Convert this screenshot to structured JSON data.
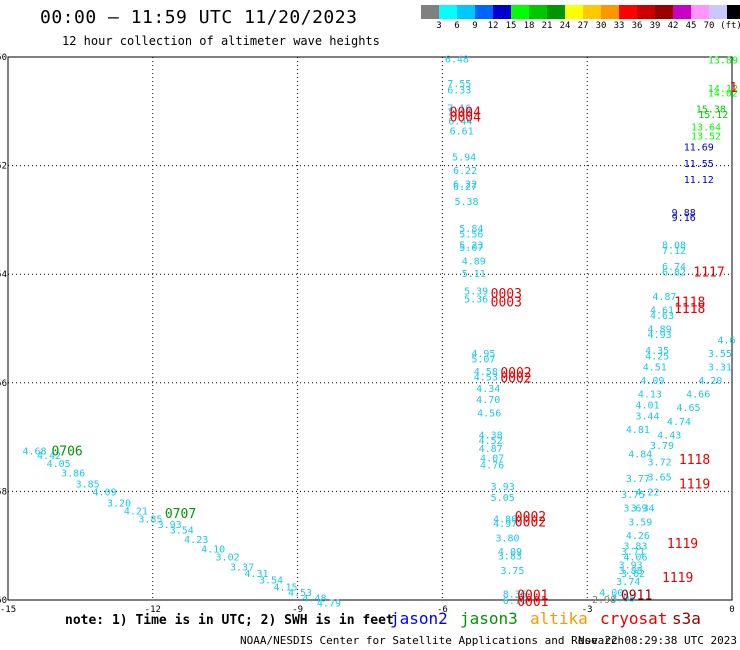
{
  "header": {
    "title": "00:00 – 11:59 UTC 11/20/2023",
    "subtitle": "12 hour collection of altimeter wave heights"
  },
  "colorbar": {
    "colors": [
      "#808080",
      "#00ffff",
      "#00c8ff",
      "#0064ff",
      "#0000c8",
      "#00ff00",
      "#00c800",
      "#009600",
      "#ffff00",
      "#ffc800",
      "#ff9600",
      "#ff0000",
      "#c80000",
      "#960000",
      "#c800c8",
      "#ff96ff",
      "#c8c8ff",
      "#000000"
    ],
    "labels": [
      "3",
      "6",
      "9",
      "12",
      "15",
      "18",
      "21",
      "24",
      "27",
      "30",
      "33",
      "36",
      "39",
      "42",
      "45",
      "70",
      "(ft)"
    ]
  },
  "chart_data": {
    "type": "scatter",
    "xlim": [
      -15,
      0
    ],
    "ylim": [
      -60,
      -50
    ],
    "x_ticks": [
      "-15",
      "-12",
      "-9",
      "-6",
      "-3",
      "0"
    ],
    "y_ticks": [
      "-50",
      "-52",
      "-54",
      "-56",
      "-58",
      "-60"
    ],
    "points": [
      {
        "lon": -5.95,
        "lat": -50.03,
        "v": "6.48",
        "c": "#1ec8e6"
      },
      {
        "lon": -5.9,
        "lat": -50.48,
        "v": "7.55",
        "c": "#1ec8e6"
      },
      {
        "lon": -5.9,
        "lat": -50.6,
        "v": "6.33",
        "c": "#1ec8e6"
      },
      {
        "lon": -5.9,
        "lat": -50.93,
        "v": "7.16",
        "c": "#1ec8e6"
      },
      {
        "lon": -5.9,
        "lat": -51.0,
        "v": "7.19",
        "c": "#1ec8e6"
      },
      {
        "lon": -5.88,
        "lat": -51.17,
        "v": "6.44",
        "c": "#1ec8e6"
      },
      {
        "lon": -5.85,
        "lat": -51.35,
        "v": "6.61",
        "c": "#1ec8e6"
      },
      {
        "lon": -5.8,
        "lat": -51.83,
        "v": "5.94",
        "c": "#1ec8e6"
      },
      {
        "lon": -5.78,
        "lat": -52.08,
        "v": "6.22",
        "c": "#1ec8e6"
      },
      {
        "lon": -5.78,
        "lat": -52.33,
        "v": "6.22",
        "c": "#1ec8e6"
      },
      {
        "lon": -5.78,
        "lat": -52.38,
        "v": "6.27",
        "c": "#1ec8e6"
      },
      {
        "lon": -5.75,
        "lat": -52.65,
        "v": "5.38",
        "c": "#1ec8e6"
      },
      {
        "lon": -5.65,
        "lat": -53.15,
        "v": "5.84",
        "c": "#1ec8e6"
      },
      {
        "lon": -5.65,
        "lat": -53.25,
        "v": "5.56",
        "c": "#1ec8e6"
      },
      {
        "lon": -5.65,
        "lat": -53.45,
        "v": "5.23",
        "c": "#1ec8e6"
      },
      {
        "lon": -5.65,
        "lat": -53.5,
        "v": "5.07",
        "c": "#1ec8e6"
      },
      {
        "lon": -5.6,
        "lat": -53.75,
        "v": "4.89",
        "c": "#1ec8e6"
      },
      {
        "lon": -5.6,
        "lat": -53.98,
        "v": "5.11",
        "c": "#1ec8e6"
      },
      {
        "lon": -5.55,
        "lat": -54.3,
        "v": "5.39",
        "c": "#1ec8e6"
      },
      {
        "lon": -5.55,
        "lat": -54.45,
        "v": "5.36",
        "c": "#1ec8e6"
      },
      {
        "lon": -5.4,
        "lat": -55.45,
        "v": "4.95",
        "c": "#1ec8e6"
      },
      {
        "lon": -5.4,
        "lat": -55.55,
        "v": "5.07",
        "c": "#1ec8e6"
      },
      {
        "lon": -5.35,
        "lat": -55.78,
        "v": "4.58",
        "c": "#1ec8e6"
      },
      {
        "lon": -5.35,
        "lat": -55.88,
        "v": "4.53",
        "c": "#1ec8e6"
      },
      {
        "lon": -5.3,
        "lat": -56.1,
        "v": "4.34",
        "c": "#1ec8e6"
      },
      {
        "lon": -5.3,
        "lat": -56.3,
        "v": "4.70",
        "c": "#1ec8e6"
      },
      {
        "lon": -5.28,
        "lat": -56.55,
        "v": "4.56",
        "c": "#1ec8e6"
      },
      {
        "lon": -5.25,
        "lat": -56.95,
        "v": "4.38",
        "c": "#1ec8e6"
      },
      {
        "lon": -5.25,
        "lat": -57.05,
        "v": "4.52",
        "c": "#1ec8e6"
      },
      {
        "lon": -5.25,
        "lat": -57.2,
        "v": "4.87",
        "c": "#1ec8e6"
      },
      {
        "lon": -5.22,
        "lat": -57.38,
        "v": "4.07",
        "c": "#1ec8e6"
      },
      {
        "lon": -5.22,
        "lat": -57.5,
        "v": "4.76",
        "c": "#1ec8e6"
      },
      {
        "lon": -5.0,
        "lat": -57.9,
        "v": "3.93",
        "c": "#1ec8e6"
      },
      {
        "lon": -5.0,
        "lat": -58.1,
        "v": "5.05",
        "c": "#1ec8e6"
      },
      {
        "lon": -4.95,
        "lat": -58.5,
        "v": "4.86",
        "c": "#1ec8e6"
      },
      {
        "lon": -4.95,
        "lat": -58.58,
        "v": "4.97",
        "c": "#1ec8e6"
      },
      {
        "lon": -4.9,
        "lat": -58.85,
        "v": "3.80",
        "c": "#1ec8e6"
      },
      {
        "lon": -4.85,
        "lat": -59.1,
        "v": "4.09",
        "c": "#1ec8e6"
      },
      {
        "lon": -4.85,
        "lat": -59.18,
        "v": "3.83",
        "c": "#1ec8e6"
      },
      {
        "lon": -4.8,
        "lat": -59.45,
        "v": "3.75",
        "c": "#1ec8e6"
      },
      {
        "lon": -4.75,
        "lat": -59.88,
        "v": "8.36",
        "c": "#1ec8e6"
      },
      {
        "lon": -4.75,
        "lat": -60.0,
        "v": "6.76",
        "c": "#1ec8e6"
      },
      {
        "lon": -14.7,
        "lat": -57.25,
        "v": "4.68",
        "c": "#1ec8e6"
      },
      {
        "lon": -14.4,
        "lat": -57.33,
        "v": "4.42",
        "c": "#1ec8e6"
      },
      {
        "lon": -14.2,
        "lat": -57.48,
        "v": "4.05",
        "c": "#1ec8e6"
      },
      {
        "lon": -13.9,
        "lat": -57.65,
        "v": "3.86",
        "c": "#1ec8e6"
      },
      {
        "lon": -13.6,
        "lat": -57.85,
        "v": "3.85",
        "c": "#1ec8e6"
      },
      {
        "lon": -13.25,
        "lat": -58.0,
        "v": "4.09",
        "c": "#1ec8e6"
      },
      {
        "lon": -12.95,
        "lat": -58.2,
        "v": "3.20",
        "c": "#1ec8e6"
      },
      {
        "lon": -12.6,
        "lat": -58.35,
        "v": "4.21",
        "c": "#1ec8e6"
      },
      {
        "lon": -12.3,
        "lat": -58.5,
        "v": "3.85",
        "c": "#1ec8e6"
      },
      {
        "lon": -11.9,
        "lat": -58.6,
        "v": "3.93",
        "c": "#1ec8e6"
      },
      {
        "lon": -11.65,
        "lat": -58.7,
        "v": "3.54",
        "c": "#1ec8e6"
      },
      {
        "lon": -11.35,
        "lat": -58.88,
        "v": "4.23",
        "c": "#1ec8e6"
      },
      {
        "lon": -11.0,
        "lat": -59.05,
        "v": "4.10",
        "c": "#1ec8e6"
      },
      {
        "lon": -10.7,
        "lat": -59.2,
        "v": "3.02",
        "c": "#1ec8e6"
      },
      {
        "lon": -10.4,
        "lat": -59.38,
        "v": "3.37",
        "c": "#1ec8e6"
      },
      {
        "lon": -10.1,
        "lat": -59.5,
        "v": "4.31",
        "c": "#1ec8e6"
      },
      {
        "lon": -9.8,
        "lat": -59.62,
        "v": "3.54",
        "c": "#1ec8e6"
      },
      {
        "lon": -9.5,
        "lat": -59.75,
        "v": "4.15",
        "c": "#1ec8e6"
      },
      {
        "lon": -9.2,
        "lat": -59.85,
        "v": "4.53",
        "c": "#1ec8e6"
      },
      {
        "lon": -8.9,
        "lat": -59.95,
        "v": "4.48",
        "c": "#1ec8e6"
      },
      {
        "lon": -8.6,
        "lat": -60.05,
        "v": "4.79",
        "c": "#1ec8e6"
      },
      {
        "lon": -2.75,
        "lat": -59.85,
        "v": "4.00",
        "c": "#1ec8e6"
      },
      {
        "lon": -2.5,
        "lat": -59.95,
        "v": "3.95",
        "c": "#1ec8e6"
      },
      {
        "lon": -2.9,
        "lat": -59.98,
        "v": "2.98",
        "c": "#808080"
      },
      {
        "lon": -2.4,
        "lat": -59.65,
        "v": "3.74",
        "c": "#1ec8e6"
      },
      {
        "lon": -2.35,
        "lat": -59.35,
        "v": "3.93",
        "c": "#1ec8e6"
      },
      {
        "lon": -2.35,
        "lat": -59.45,
        "v": "3.88",
        "c": "#1ec8e6"
      },
      {
        "lon": -2.3,
        "lat": -59.5,
        "v": "3.62",
        "c": "#1ec8e6"
      },
      {
        "lon": -2.3,
        "lat": -59.1,
        "v": "3.71",
        "c": "#1ec8e6"
      },
      {
        "lon": -2.25,
        "lat": -59.2,
        "v": "4.06",
        "c": "#1ec8e6"
      },
      {
        "lon": -2.25,
        "lat": -59.0,
        "v": "3.83",
        "c": "#1ec8e6"
      },
      {
        "lon": -2.2,
        "lat": -58.8,
        "v": "4.26",
        "c": "#1ec8e6"
      },
      {
        "lon": -2.15,
        "lat": -58.55,
        "v": "3.59",
        "c": "#1ec8e6"
      },
      {
        "lon": -2.1,
        "lat": -58.3,
        "v": "3.34",
        "c": "#1ec8e6"
      },
      {
        "lon": -2.25,
        "lat": -58.3,
        "v": "3.69",
        "c": "#1ec8e6"
      },
      {
        "lon": -2.3,
        "lat": -58.05,
        "v": "3.75",
        "c": "#1ec8e6"
      },
      {
        "lon": -2.0,
        "lat": -58.0,
        "v": "4.22",
        "c": "#1ec8e6"
      },
      {
        "lon": -2.2,
        "lat": -57.75,
        "v": "3.77",
        "c": "#1ec8e6"
      },
      {
        "lon": -1.75,
        "lat": -57.73,
        "v": "3.65",
        "c": "#1ec8e6"
      },
      {
        "lon": -1.75,
        "lat": -57.45,
        "v": "3.72",
        "c": "#1ec8e6"
      },
      {
        "lon": -2.15,
        "lat": -57.3,
        "v": "4.84",
        "c": "#1ec8e6"
      },
      {
        "lon": -2.2,
        "lat": -56.85,
        "v": "4.81",
        "c": "#1ec8e6"
      },
      {
        "lon": -1.7,
        "lat": -57.15,
        "v": "3.79",
        "c": "#1ec8e6"
      },
      {
        "lon": -1.55,
        "lat": -56.95,
        "v": "4.43",
        "c": "#1ec8e6"
      },
      {
        "lon": -1.35,
        "lat": -56.7,
        "v": "4.74",
        "c": "#1ec8e6"
      },
      {
        "lon": -1.15,
        "lat": -56.45,
        "v": "4.65",
        "c": "#1ec8e6"
      },
      {
        "lon": -0.95,
        "lat": -56.2,
        "v": "4.66",
        "c": "#1ec8e6"
      },
      {
        "lon": -0.7,
        "lat": -55.95,
        "v": "4.20",
        "c": "#1ec8e6"
      },
      {
        "lon": -0.5,
        "lat": -55.7,
        "v": "3.31",
        "c": "#1ec8e6"
      },
      {
        "lon": -0.5,
        "lat": -55.45,
        "v": "3.55",
        "c": "#1ec8e6"
      },
      {
        "lon": -0.3,
        "lat": -55.2,
        "v": "4.6",
        "c": "#1ec8e6"
      },
      {
        "lon": -2.0,
        "lat": -56.6,
        "v": "3.44",
        "c": "#1ec8e6"
      },
      {
        "lon": -2.0,
        "lat": -56.4,
        "v": "4.01",
        "c": "#1ec8e6"
      },
      {
        "lon": -1.95,
        "lat": -56.2,
        "v": "4.13",
        "c": "#1ec8e6"
      },
      {
        "lon": -1.9,
        "lat": -55.95,
        "v": "4.09",
        "c": "#1ec8e6"
      },
      {
        "lon": -1.85,
        "lat": -55.7,
        "v": "4.51",
        "c": "#1ec8e6"
      },
      {
        "lon": -1.8,
        "lat": -55.5,
        "v": "4.25",
        "c": "#1ec8e6"
      },
      {
        "lon": -1.8,
        "lat": -55.4,
        "v": "4.35",
        "c": "#1ec8e6"
      },
      {
        "lon": -1.75,
        "lat": -55.1,
        "v": "4.93",
        "c": "#1ec8e6"
      },
      {
        "lon": -1.75,
        "lat": -55.0,
        "v": "4.89",
        "c": "#1ec8e6"
      },
      {
        "lon": -1.7,
        "lat": -54.75,
        "v": "4.63",
        "c": "#1ec8e6"
      },
      {
        "lon": -1.7,
        "lat": -54.65,
        "v": "4.61",
        "c": "#1ec8e6"
      },
      {
        "lon": -1.65,
        "lat": -54.4,
        "v": "4.87",
        "c": "#1ec8e6"
      },
      {
        "lon": -1.45,
        "lat": -53.85,
        "v": "6.74",
        "c": "#1ec8e6"
      },
      {
        "lon": -1.45,
        "lat": -53.95,
        "v": "6.82",
        "c": "#1ec8e6"
      },
      {
        "lon": -1.45,
        "lat": -53.55,
        "v": "7.12",
        "c": "#1ec8e6"
      },
      {
        "lon": -1.45,
        "lat": -53.45,
        "v": "8.08",
        "c": "#1ec8e6"
      },
      {
        "lon": -1.25,
        "lat": -52.85,
        "v": "9.88",
        "c": "#0000c8"
      },
      {
        "lon": -1.25,
        "lat": -52.95,
        "v": "9.16",
        "c": "#0000c8"
      },
      {
        "lon": -1.0,
        "lat": -52.25,
        "v": "11.12",
        "c": "#0000c8"
      },
      {
        "lon": -1.0,
        "lat": -51.95,
        "v": "11.55",
        "c": "#0000c8"
      },
      {
        "lon": -1.0,
        "lat": -51.65,
        "v": "11.69",
        "c": "#0000c8"
      },
      {
        "lon": -0.85,
        "lat": -51.28,
        "v": "13.64",
        "c": "#00ff00"
      },
      {
        "lon": -0.85,
        "lat": -51.45,
        "v": "13.52",
        "c": "#00ff00"
      },
      {
        "lon": -0.75,
        "lat": -50.95,
        "v": "15.38",
        "c": "#00c800"
      },
      {
        "lon": -0.7,
        "lat": -51.05,
        "v": "15.12",
        "c": "#00c800"
      },
      {
        "lon": -0.5,
        "lat": -50.57,
        "v": "14.12",
        "c": "#00ff00"
      },
      {
        "lon": -0.5,
        "lat": -50.65,
        "v": "14.02",
        "c": "#00ff00"
      },
      {
        "lon": -0.5,
        "lat": -50.05,
        "v": "13.89",
        "c": "#00ff00"
      }
    ],
    "labels": [
      {
        "lon": -14.1,
        "lat": -57.25,
        "v": "0706",
        "c": "#009600"
      },
      {
        "lon": -11.75,
        "lat": -58.4,
        "v": "0707",
        "c": "#009600"
      },
      {
        "lon": -5.85,
        "lat": -51.0,
        "v": "0004",
        "c": "#e60000"
      },
      {
        "lon": -5.85,
        "lat": -51.1,
        "v": "0004",
        "c": "#e60000"
      },
      {
        "lon": -5.0,
        "lat": -54.35,
        "v": "0003",
        "c": "#e60000"
      },
      {
        "lon": -5.0,
        "lat": -54.5,
        "v": "0003",
        "c": "#e60000"
      },
      {
        "lon": -4.8,
        "lat": -55.8,
        "v": "0002",
        "c": "#e60000"
      },
      {
        "lon": -4.8,
        "lat": -55.9,
        "v": "0002",
        "c": "#e60000"
      },
      {
        "lon": -4.5,
        "lat": -58.45,
        "v": "0002",
        "c": "#e60000"
      },
      {
        "lon": -4.5,
        "lat": -58.55,
        "v": "0002",
        "c": "#e60000"
      },
      {
        "lon": -4.45,
        "lat": -59.9,
        "v": "0001",
        "c": "#e60000"
      },
      {
        "lon": -4.45,
        "lat": -60.02,
        "v": "0001",
        "c": "#e60000"
      },
      {
        "lon": -1.1,
        "lat": -57.4,
        "v": "1118",
        "c": "#e60000"
      },
      {
        "lon": -1.1,
        "lat": -57.85,
        "v": "1119",
        "c": "#e60000"
      },
      {
        "lon": -1.35,
        "lat": -58.95,
        "v": "1119",
        "c": "#e60000"
      },
      {
        "lon": -1.45,
        "lat": -59.58,
        "v": "1119",
        "c": "#e60000"
      },
      {
        "lon": -1.2,
        "lat": -54.5,
        "v": "1118",
        "c": "#e60000"
      },
      {
        "lon": -1.2,
        "lat": -54.62,
        "v": "1118",
        "c": "#e60000"
      },
      {
        "lon": -0.8,
        "lat": -53.95,
        "v": "1117",
        "c": "#e60000"
      },
      {
        "lon": -0.05,
        "lat": -50.55,
        "v": "1",
        "c": "#e60000"
      },
      {
        "lon": -2.3,
        "lat": -59.9,
        "v": "0911",
        "c": "#960000"
      }
    ]
  },
  "footer": {
    "note": "note: 1) Time is in UTC; 2) SWH is in feet",
    "missions": [
      {
        "name": "jason2",
        "color": "#0000ff"
      },
      {
        "name": "jason3",
        "color": "#009600"
      },
      {
        "name": "altika",
        "color": "#ff9600"
      },
      {
        "name": "cryosat",
        "color": "#e60000"
      },
      {
        "name": "s3a",
        "color": "#960000"
      }
    ],
    "credit": "NOAA/NESDIS Center for Satellite Applications and Research",
    "timestamp": "Nov 22 08:29:38 UTC 2023"
  }
}
